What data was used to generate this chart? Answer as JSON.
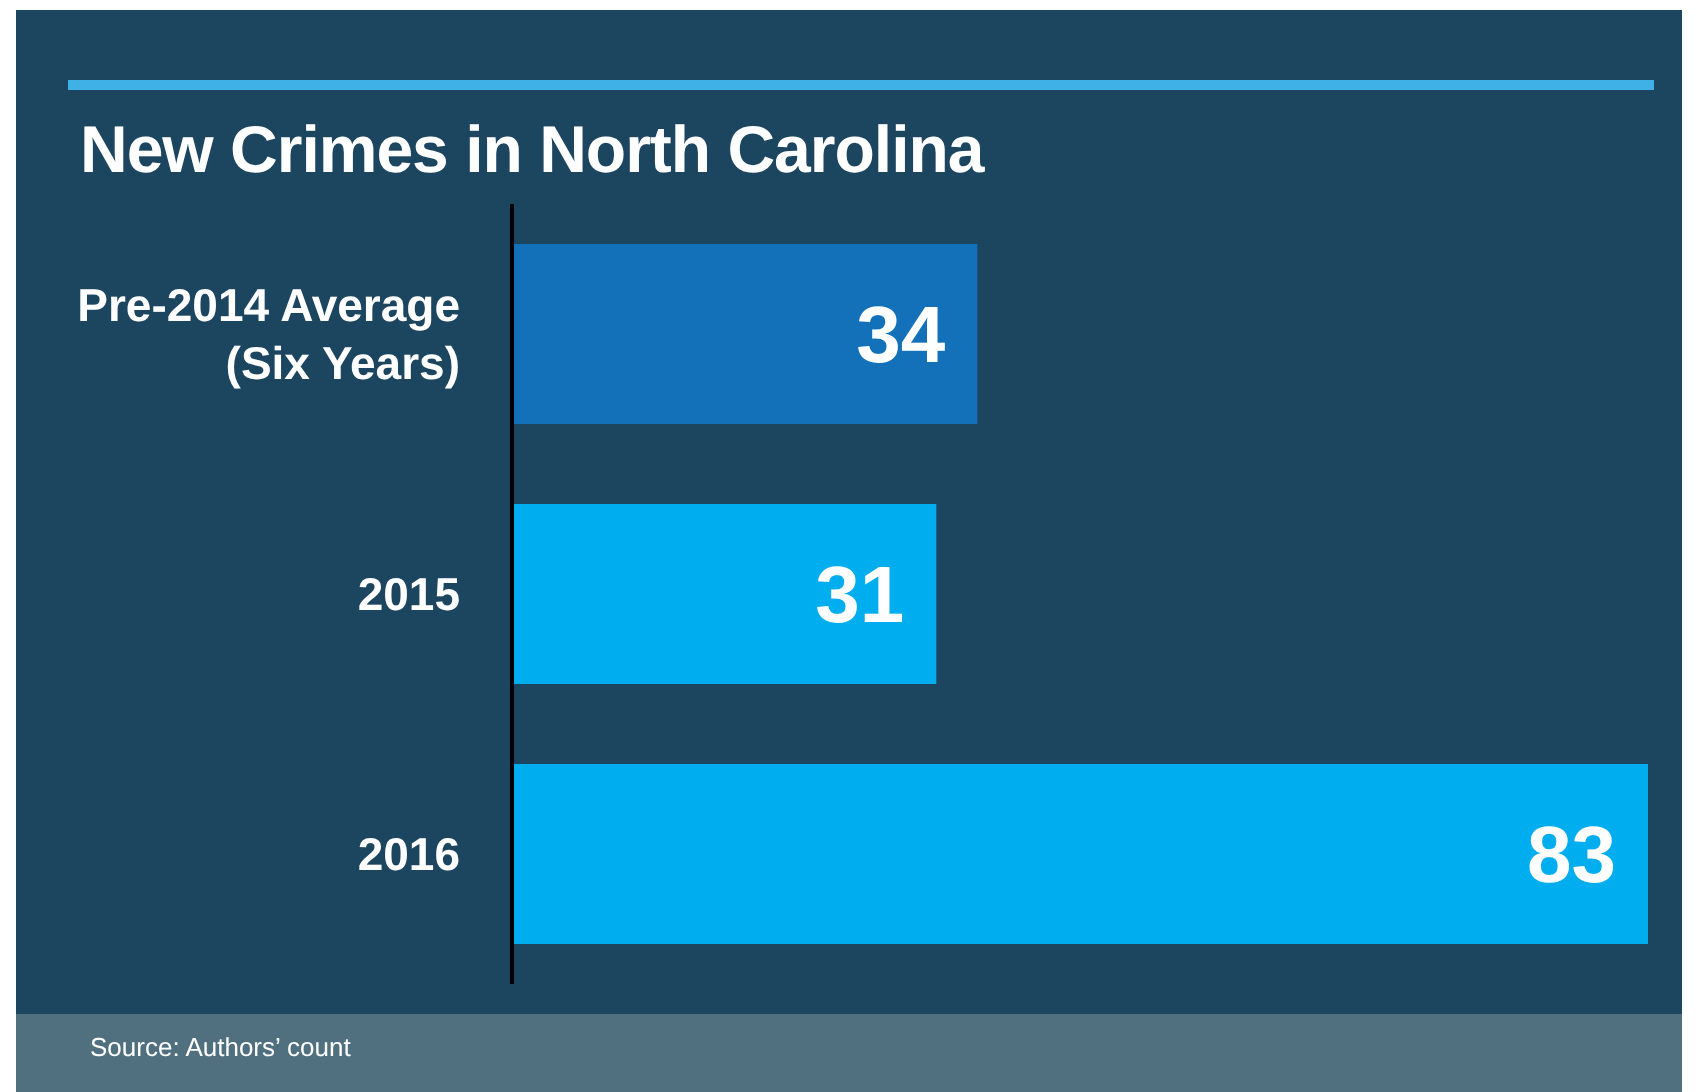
{
  "chart_data": {
    "type": "bar",
    "orientation": "horizontal",
    "title": "New Crimes in North Carolina",
    "categories": [
      "Pre-2014 Average (Six Years)",
      "2015",
      "2016"
    ],
    "values": [
      34,
      31,
      83
    ],
    "colors": [
      "#1271b8",
      "#00adef",
      "#00adef"
    ],
    "data_labels": true,
    "annotations": [
      "Source: Authors’ count"
    ]
  }
}
